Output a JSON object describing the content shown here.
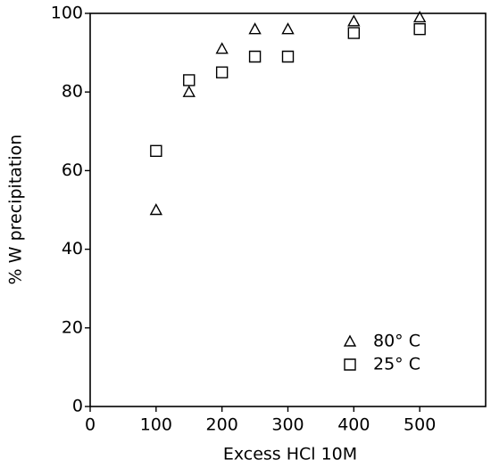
{
  "chart_data": {
    "type": "scatter",
    "x_label": "Excess HCl 10M",
    "y_label": "% W precipitation",
    "xlim": [
      0,
      600
    ],
    "xticks": [
      0,
      100,
      200,
      300,
      400,
      500
    ],
    "ylim": [
      0,
      100
    ],
    "yticks": [
      0,
      20,
      40,
      60,
      80,
      100
    ],
    "legend": "lower right",
    "series": [
      {
        "name": "80° C",
        "color": "#000000",
        "marker": "triangle",
        "x": [
          100,
          150,
          200,
          250,
          300,
          400,
          500
        ],
        "values": [
          50,
          80,
          91,
          96,
          96,
          98,
          99
        ]
      },
      {
        "name": "25° C",
        "color": "#000000",
        "marker": "square",
        "x": [
          100,
          150,
          200,
          250,
          300,
          400,
          500
        ],
        "values": [
          65,
          83,
          85,
          89,
          89,
          95,
          96
        ]
      }
    ]
  }
}
